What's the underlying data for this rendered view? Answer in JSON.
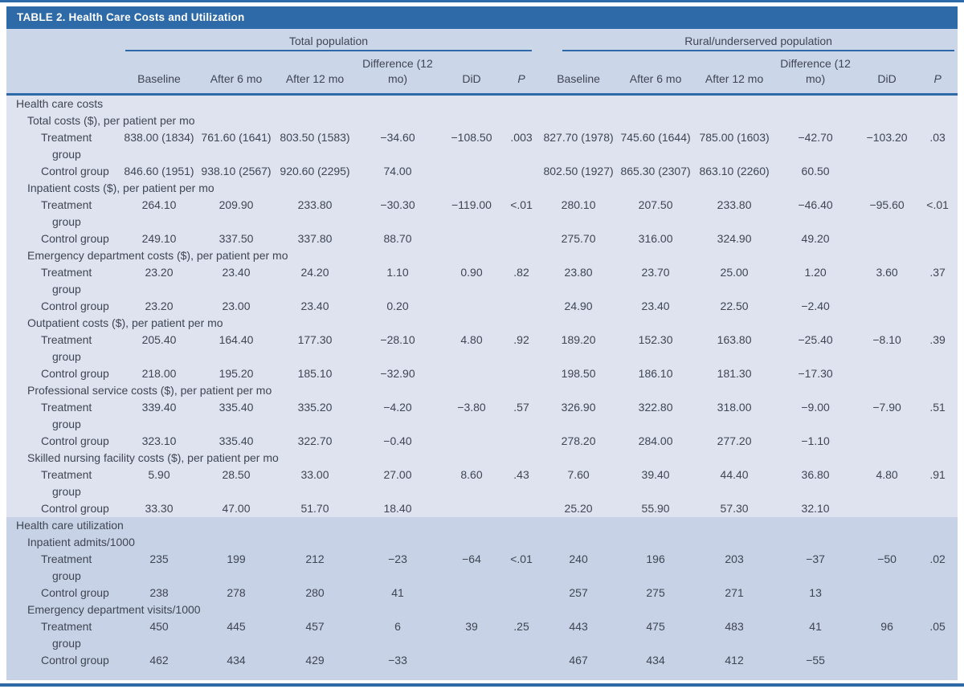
{
  "colors": {
    "accent_blue": "#2e6aa8",
    "header_bg": "#ccd6e9",
    "costs_section_bg": "#dee3ef",
    "utilization_section_bg": "#c7d2e6",
    "title_text": "#ffffff",
    "body_text": "#3f4552"
  },
  "table": {
    "title": "TABLE 2.  Health Care Costs and Utilization",
    "column_groups": [
      "Total population",
      "Rural/underserved population"
    ],
    "columns": [
      {
        "label": "Baseline"
      },
      {
        "label": "After 6 mo"
      },
      {
        "label": "After 12 mo"
      },
      {
        "label": "Difference (12 mo)"
      },
      {
        "label": "DiD"
      },
      {
        "label": "P",
        "italic": true
      }
    ],
    "sections": [
      {
        "label": "Health care costs",
        "shaded": false,
        "subsections": [
          {
            "label": "Total costs ($), per patient per mo",
            "rows": [
              {
                "label": "Treatment group",
                "total": [
                  "838.00 (1834)",
                  "761.60 (1641)",
                  "803.50 (1583)",
                  "−34.60",
                  "−108.50",
                  ".003"
                ],
                "rural": [
                  "827.70 (1978)",
                  "745.60 (1644)",
                  "785.00 (1603)",
                  "−42.70",
                  "−103.20",
                  ".03"
                ]
              },
              {
                "label": "Control group",
                "total": [
                  "846.60 (1951)",
                  "938.10 (2567)",
                  "920.60 (2295)",
                  "74.00",
                  "",
                  ""
                ],
                "rural": [
                  "802.50 (1927)",
                  "865.30 (2307)",
                  "863.10 (2260)",
                  "60.50",
                  "",
                  ""
                ]
              }
            ]
          },
          {
            "label": "Inpatient costs ($), per patient per mo",
            "rows": [
              {
                "label": "Treatment group",
                "total": [
                  "264.10",
                  "209.90",
                  "233.80",
                  "−30.30",
                  "−119.00",
                  "<.01"
                ],
                "rural": [
                  "280.10",
                  "207.50",
                  "233.80",
                  "−46.40",
                  "−95.60",
                  "<.01"
                ]
              },
              {
                "label": "Control group",
                "total": [
                  "249.10",
                  "337.50",
                  "337.80",
                  "88.70",
                  "",
                  ""
                ],
                "rural": [
                  "275.70",
                  "316.00",
                  "324.90",
                  "49.20",
                  "",
                  ""
                ]
              }
            ]
          },
          {
            "label": "Emergency department costs ($), per patient per mo",
            "rows": [
              {
                "label": "Treatment group",
                "total": [
                  "23.20",
                  "23.40",
                  "24.20",
                  "1.10",
                  "0.90",
                  ".82"
                ],
                "rural": [
                  "23.80",
                  "23.70",
                  "25.00",
                  "1.20",
                  "3.60",
                  ".37"
                ]
              },
              {
                "label": "Control group",
                "total": [
                  "23.20",
                  "23.00",
                  "23.40",
                  "0.20",
                  "",
                  ""
                ],
                "rural": [
                  "24.90",
                  "23.40",
                  "22.50",
                  "−2.40",
                  "",
                  ""
                ]
              }
            ]
          },
          {
            "label": "Outpatient costs ($), per patient per mo",
            "rows": [
              {
                "label": "Treatment group",
                "total": [
                  "205.40",
                  "164.40",
                  "177.30",
                  "−28.10",
                  "4.80",
                  ".92"
                ],
                "rural": [
                  "189.20",
                  "152.30",
                  "163.80",
                  "−25.40",
                  "−8.10",
                  ".39"
                ]
              },
              {
                "label": "Control group",
                "total": [
                  "218.00",
                  "195.20",
                  "185.10",
                  "−32.90",
                  "",
                  ""
                ],
                "rural": [
                  "198.50",
                  "186.10",
                  "181.30",
                  "−17.30",
                  "",
                  ""
                ]
              }
            ]
          },
          {
            "label": "Professional service costs ($), per patient per mo",
            "rows": [
              {
                "label": "Treatment group",
                "total": [
                  "339.40",
                  "335.40",
                  "335.20",
                  "−4.20",
                  "−3.80",
                  ".57"
                ],
                "rural": [
                  "326.90",
                  "322.80",
                  "318.00",
                  "−9.00",
                  "−7.90",
                  ".51"
                ]
              },
              {
                "label": "Control group",
                "total": [
                  "323.10",
                  "335.40",
                  "322.70",
                  "−0.40",
                  "",
                  ""
                ],
                "rural": [
                  "278.20",
                  "284.00",
                  "277.20",
                  "−1.10",
                  "",
                  ""
                ]
              }
            ]
          },
          {
            "label": "Skilled nursing facility costs ($), per patient per mo",
            "rows": [
              {
                "label": "Treatment group",
                "total": [
                  "5.90",
                  "28.50",
                  "33.00",
                  "27.00",
                  "8.60",
                  ".43"
                ],
                "rural": [
                  "7.60",
                  "39.40",
                  "44.40",
                  "36.80",
                  "4.80",
                  ".91"
                ]
              },
              {
                "label": "Control group",
                "total": [
                  "33.30",
                  "47.00",
                  "51.70",
                  "18.40",
                  "",
                  ""
                ],
                "rural": [
                  "25.20",
                  "55.90",
                  "57.30",
                  "32.10",
                  "",
                  ""
                ]
              }
            ]
          }
        ]
      },
      {
        "label": "Health care utilization",
        "shaded": true,
        "subsections": [
          {
            "label": "Inpatient admits/1000",
            "rows": [
              {
                "label": "Treatment group",
                "total": [
                  "235",
                  "199",
                  "212",
                  "−23",
                  "−64",
                  "<.01"
                ],
                "rural": [
                  "240",
                  "196",
                  "203",
                  "−37",
                  "−50",
                  ".02"
                ]
              },
              {
                "label": "Control group",
                "total": [
                  "238",
                  "278",
                  "280",
                  "41",
                  "",
                  ""
                ],
                "rural": [
                  "257",
                  "275",
                  "271",
                  "13",
                  "",
                  ""
                ]
              }
            ]
          },
          {
            "label": "Emergency department visits/1000",
            "rows": [
              {
                "label": "Treatment group",
                "total": [
                  "450",
                  "445",
                  "457",
                  "6",
                  "39",
                  ".25"
                ],
                "rural": [
                  "443",
                  "475",
                  "483",
                  "41",
                  "96",
                  ".05"
                ]
              },
              {
                "label": "Control group",
                "total": [
                  "462",
                  "434",
                  "429",
                  "−33",
                  "",
                  ""
                ],
                "rural": [
                  "467",
                  "434",
                  "412",
                  "−55",
                  "",
                  ""
                ]
              }
            ]
          }
        ]
      }
    ]
  }
}
